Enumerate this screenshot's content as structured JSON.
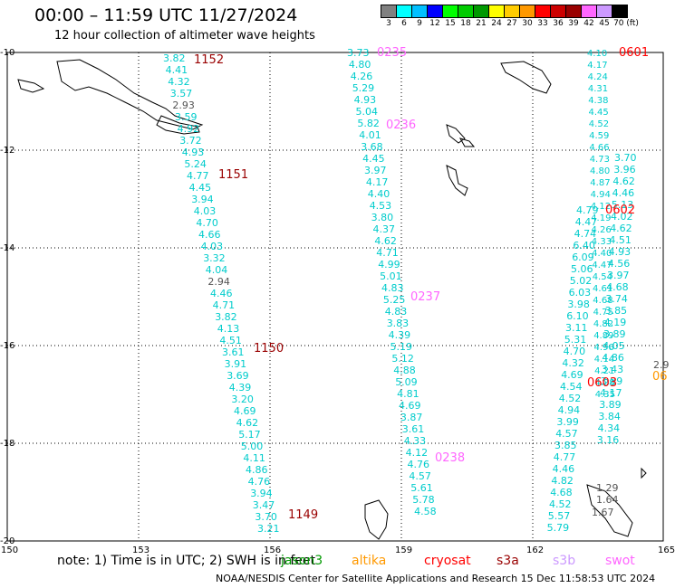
{
  "title": "00:00 – 11:59 UTC 11/27/2024",
  "subtitle": "12 hour collection of altimeter wave heights",
  "legend": {
    "colors": [
      "#808080",
      "#00ffff",
      "#00bfff",
      "#0000ff",
      "#00ff00",
      "#00cc00",
      "#009900",
      "#ffff00",
      "#ffcc00",
      "#ff9900",
      "#ff0000",
      "#cc0000",
      "#990000",
      "#ff66ff",
      "#cc99ff",
      "#000000"
    ],
    "labels": [
      "3",
      "6",
      "9",
      "12",
      "15",
      "18",
      "21",
      "24",
      "27",
      "30",
      "33",
      "36",
      "39",
      "42",
      "45",
      "70 (ft)"
    ]
  },
  "axes": {
    "lat_ticks": [
      "-10",
      "-12",
      "-14",
      "-16",
      "-18",
      "-20"
    ],
    "lon_ticks": [
      "150",
      "153",
      "156",
      "159",
      "162",
      "165"
    ]
  },
  "passes": [
    {
      "label": "1152",
      "color": "#990000"
    },
    {
      "label": "1151",
      "color": "#990000"
    },
    {
      "label": "1150",
      "color": "#990000"
    },
    {
      "label": "1149",
      "color": "#990000"
    },
    {
      "label": "0235",
      "color": "#ff66ff"
    },
    {
      "label": "0236",
      "color": "#ff66ff"
    },
    {
      "label": "0237",
      "color": "#ff66ff"
    },
    {
      "label": "0238",
      "color": "#ff66ff"
    },
    {
      "label": "0601",
      "color": "#ff0000"
    },
    {
      "label": "0602",
      "color": "#ff0000"
    },
    {
      "label": "0603",
      "color": "#ff0000"
    }
  ],
  "track_a": [
    "3.82",
    "4.41",
    "4.32",
    "3.57",
    "2.93",
    "3.59",
    "4.92",
    "3.72",
    "4.93",
    "5.24",
    "4.77",
    "4.45",
    "3.94",
    "4.03",
    "4.70",
    "4.66",
    "4.03",
    "3.32",
    "4.04",
    "2.94",
    "4.46",
    "4.71",
    "3.82",
    "4.13",
    "4.51",
    "3.61",
    "3.91",
    "3.69",
    "4.39",
    "3.20",
    "4.69",
    "4.62",
    "5.17",
    "5.00",
    "4.11",
    "4.86",
    "4.76",
    "3.94",
    "3.47",
    "3.70",
    "3.21"
  ],
  "track_b": [
    "3.73",
    "4.80",
    "4.26",
    "5.29",
    "4.93",
    "5.04",
    "5.82",
    "4.01",
    "3.68",
    "4.45",
    "3.97",
    "4.17",
    "4.40",
    "4.53",
    "3.80",
    "4.37",
    "4.62",
    "4.71",
    "4.99",
    "5.01",
    "4.83",
    "5.25",
    "4.83",
    "3.83",
    "4.39",
    "5.19",
    "5.12",
    "4.88",
    "5.09",
    "4.81",
    "4.69",
    "3.87",
    "3.61",
    "4.33",
    "4.12",
    "4.76",
    "4.57",
    "5.61",
    "5.78",
    "4.58"
  ],
  "track_c": [
    "4.79",
    "4.47",
    "4.74",
    "6.40",
    "6.09",
    "5.06",
    "5.02",
    "6.03",
    "3.98",
    "6.10",
    "3.11",
    "5.31",
    "4.70",
    "4.32",
    "4.69",
    "4.54",
    "4.52",
    "4.94",
    "3.99",
    "4.57",
    "3.85",
    "4.77",
    "4.46",
    "4.82",
    "4.68",
    "4.52",
    "5.57",
    "5.79"
  ],
  "track_d": [
    "3.70",
    "3.96",
    "4.62",
    "4.46",
    "5.13",
    "4.02",
    "4.62",
    "4.51",
    "4.93",
    "4.56",
    "3.97",
    "4.68",
    "3.74",
    "3.85",
    "4.19",
    "3.89",
    "4.05",
    "4.86",
    "3.43",
    "3.89",
    "4.17",
    "3.89",
    "3.84",
    "4.34",
    "3.16"
  ],
  "gray_values": [
    "2.93",
    "2.94",
    "2.9",
    "1.29",
    "1.64",
    "1.67"
  ],
  "footer": {
    "note": "note:  1) Time is in UTC;  2) SWH is in feet",
    "sats": [
      {
        "name": "jason3",
        "color": "#009900"
      },
      {
        "name": "altika",
        "color": "#ff9900"
      },
      {
        "name": "cryosat",
        "color": "#ff0000"
      },
      {
        "name": "s3a",
        "color": "#990000"
      },
      {
        "name": "s3b",
        "color": "#cc99ff"
      },
      {
        "name": "swot",
        "color": "#ff66ff"
      }
    ],
    "credit": "NOAA/NESDIS Center for Satellite Applications and Research    15 Dec 11:58:53 UTC 2024"
  }
}
